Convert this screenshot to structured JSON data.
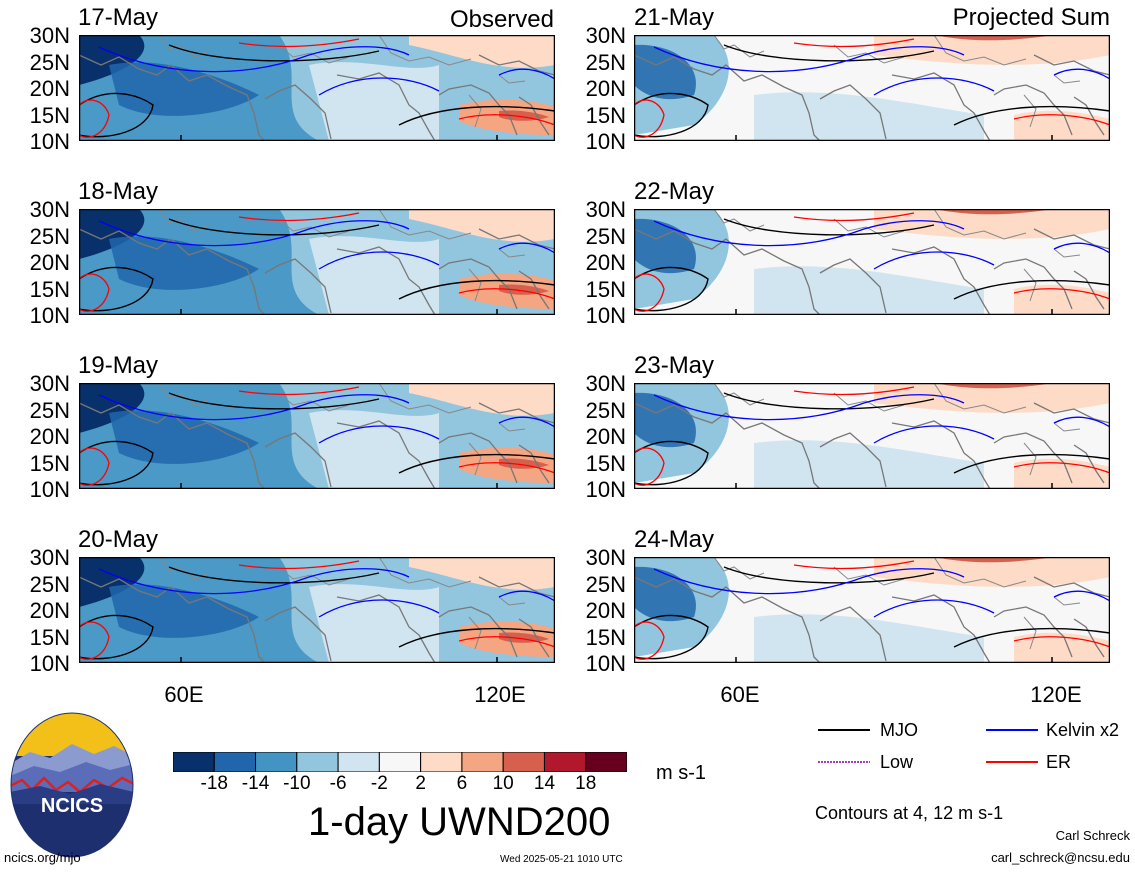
{
  "header": {
    "observed_label": "Observed",
    "projected_label": "Projected Sum"
  },
  "panels": {
    "left": [
      {
        "date": "17-May"
      },
      {
        "date": "18-May"
      },
      {
        "date": "19-May"
      },
      {
        "date": "20-May"
      }
    ],
    "right": [
      {
        "date": "21-May"
      },
      {
        "date": "22-May"
      },
      {
        "date": "23-May"
      },
      {
        "date": "24-May"
      }
    ]
  },
  "axes": {
    "lat_ticks": [
      "30N",
      "25N",
      "20N",
      "15N",
      "10N"
    ],
    "lon_ticks": [
      "60E",
      "120E"
    ]
  },
  "colorbar": {
    "labels": [
      "-18",
      "-14",
      "-10",
      "-6",
      "-2",
      "2",
      "6",
      "10",
      "14",
      "18"
    ],
    "colors": [
      "#08306b",
      "#2166ac",
      "#4393c3",
      "#92c5de",
      "#d1e5f0",
      "#f7f7f7",
      "#fddbc7",
      "#f4a582",
      "#d6604d",
      "#b2182b",
      "#67001f"
    ],
    "units": "m s-1",
    "title": "1-day UWND200"
  },
  "legend": {
    "items": [
      {
        "label": "MJO",
        "color": "#000000"
      },
      {
        "label": "Kelvin x2",
        "color": "#0000ff"
      },
      {
        "label": "Low",
        "color": "#a040c0"
      },
      {
        "label": "ER",
        "color": "#ff0000"
      }
    ],
    "contours_note": "Contours at 4, 12 m s-1"
  },
  "logo": {
    "text": "NCICS"
  },
  "footer": {
    "url": "ncics.org/mjo",
    "timestamp": "Wed 2025-05-21 1010 UTC",
    "author": "Carl Schreck",
    "email": "carl_schreck@ncsu.edu"
  }
}
